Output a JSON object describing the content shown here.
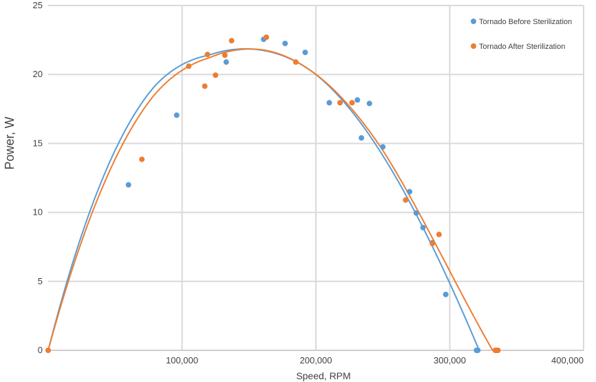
{
  "chart_data": {
    "type": "scatter",
    "xlabel": "Speed, RPM",
    "ylabel": "Power, W",
    "xlim": [
      0,
      400000
    ],
    "ylim": [
      0,
      25
    ],
    "x_ticks": [
      100000,
      200000,
      300000,
      400000
    ],
    "x_tick_labels": [
      "100,000",
      "200,000",
      "300,000",
      "400,000"
    ],
    "y_ticks": [
      0,
      5,
      10,
      15,
      20,
      25
    ],
    "y_tick_labels": [
      "0",
      "5",
      "10",
      "15",
      "20",
      "25"
    ],
    "grid": true,
    "legend_position": "top-right",
    "series": [
      {
        "name": "Tornado Before Sterilization",
        "color": "#5b9bd5",
        "points": [
          [
            60000,
            12.0
          ],
          [
            96000,
            17.05
          ],
          [
            133000,
            20.9
          ],
          [
            161000,
            22.55
          ],
          [
            177000,
            22.25
          ],
          [
            192000,
            21.6
          ],
          [
            210000,
            17.95
          ],
          [
            231000,
            18.15
          ],
          [
            234000,
            15.4
          ],
          [
            240000,
            17.9
          ],
          [
            250000,
            14.75
          ],
          [
            270000,
            11.5
          ],
          [
            275000,
            9.95
          ],
          [
            280000,
            8.9
          ],
          [
            287000,
            7.8
          ],
          [
            297000,
            4.05
          ],
          [
            320000,
            0
          ],
          [
            321000,
            0
          ]
        ],
        "trend": [
          [
            0,
            0
          ],
          [
            40000,
            12.3
          ],
          [
            80000,
            19.2
          ],
          [
            120000,
            21.4
          ],
          [
            163000,
            21.7
          ],
          [
            200000,
            20.0
          ],
          [
            240000,
            15.6
          ],
          [
            280000,
            8.9
          ],
          [
            322000,
            0
          ]
        ]
      },
      {
        "name": "Tornado After Sterilization",
        "color": "#ed7d31",
        "points": [
          [
            0,
            0
          ],
          [
            70000,
            13.85
          ],
          [
            105000,
            20.6
          ],
          [
            117000,
            19.15
          ],
          [
            119000,
            21.45
          ],
          [
            125000,
            19.95
          ],
          [
            132000,
            21.4
          ],
          [
            137000,
            22.45
          ],
          [
            163000,
            22.7
          ],
          [
            185000,
            20.9
          ],
          [
            218000,
            17.95
          ],
          [
            227000,
            17.95
          ],
          [
            267000,
            10.9
          ],
          [
            287000,
            7.75
          ],
          [
            292000,
            8.4
          ],
          [
            334000,
            0
          ],
          [
            335000,
            0
          ],
          [
            336000,
            0
          ]
        ],
        "trend": [
          [
            0,
            0
          ],
          [
            40000,
            11.7
          ],
          [
            80000,
            18.6
          ],
          [
            120000,
            21.2
          ],
          [
            165000,
            21.7
          ],
          [
            210000,
            19.2
          ],
          [
            250000,
            14.5
          ],
          [
            290000,
            7.6
          ],
          [
            332000,
            0
          ]
        ]
      }
    ]
  }
}
